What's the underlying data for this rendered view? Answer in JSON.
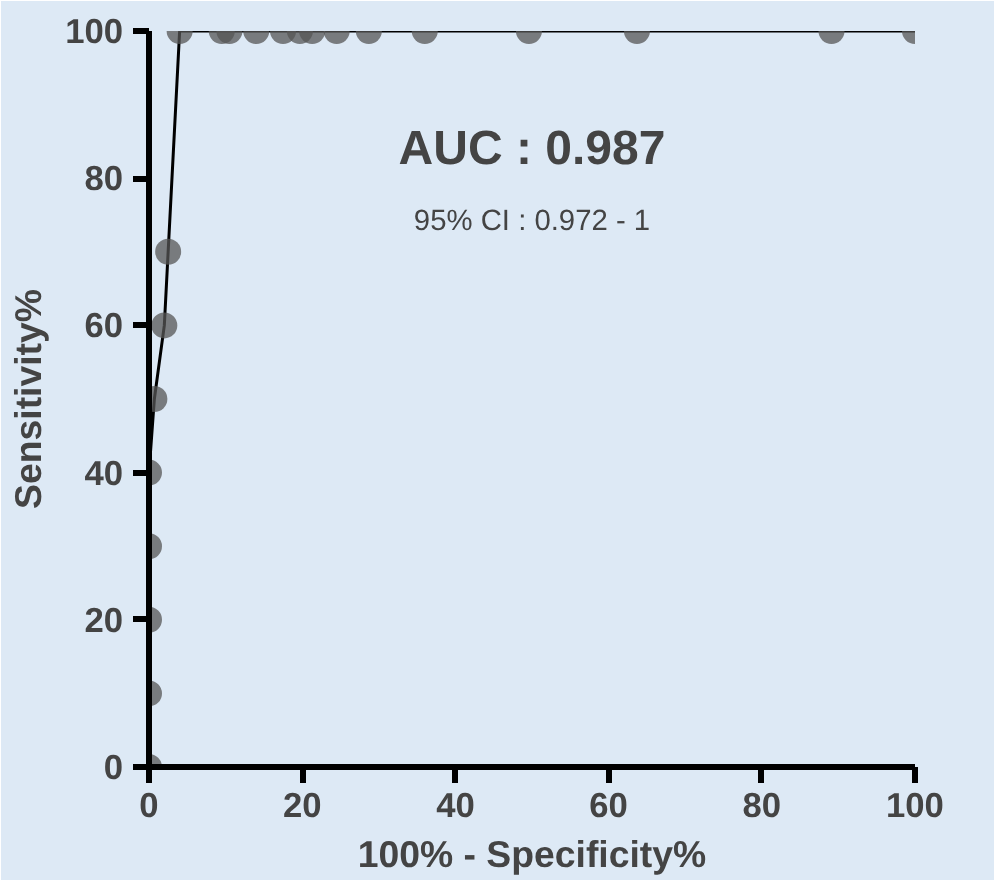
{
  "chart_data": {
    "type": "line",
    "xlabel": "100% - Specificity%",
    "ylabel": "Sensitivity%",
    "x": [
      0,
      0,
      0,
      0,
      0,
      0.7,
      2,
      2.5,
      4,
      9.5,
      10.5,
      14,
      17.5,
      19.7,
      21.3,
      24.5,
      28.7,
      36,
      49.6,
      63.7,
      89.1,
      100
    ],
    "series": [
      {
        "color": "#555555",
        "values": [
          0,
          10,
          20,
          30,
          40,
          50,
          60,
          70,
          100,
          100,
          100,
          100,
          100,
          100,
          100,
          100,
          100,
          100,
          100,
          100,
          100,
          100
        ]
      }
    ],
    "marker": "circle",
    "xlim": [
      0,
      100
    ],
    "ylim": [
      0,
      100
    ],
    "xticks": [
      0,
      20,
      40,
      60,
      80,
      100
    ],
    "yticks": [
      0,
      20,
      40,
      60,
      80,
      100
    ],
    "annotations": [
      "AUC : 0.987",
      "95% CI : 0.972 - 1"
    ]
  }
}
